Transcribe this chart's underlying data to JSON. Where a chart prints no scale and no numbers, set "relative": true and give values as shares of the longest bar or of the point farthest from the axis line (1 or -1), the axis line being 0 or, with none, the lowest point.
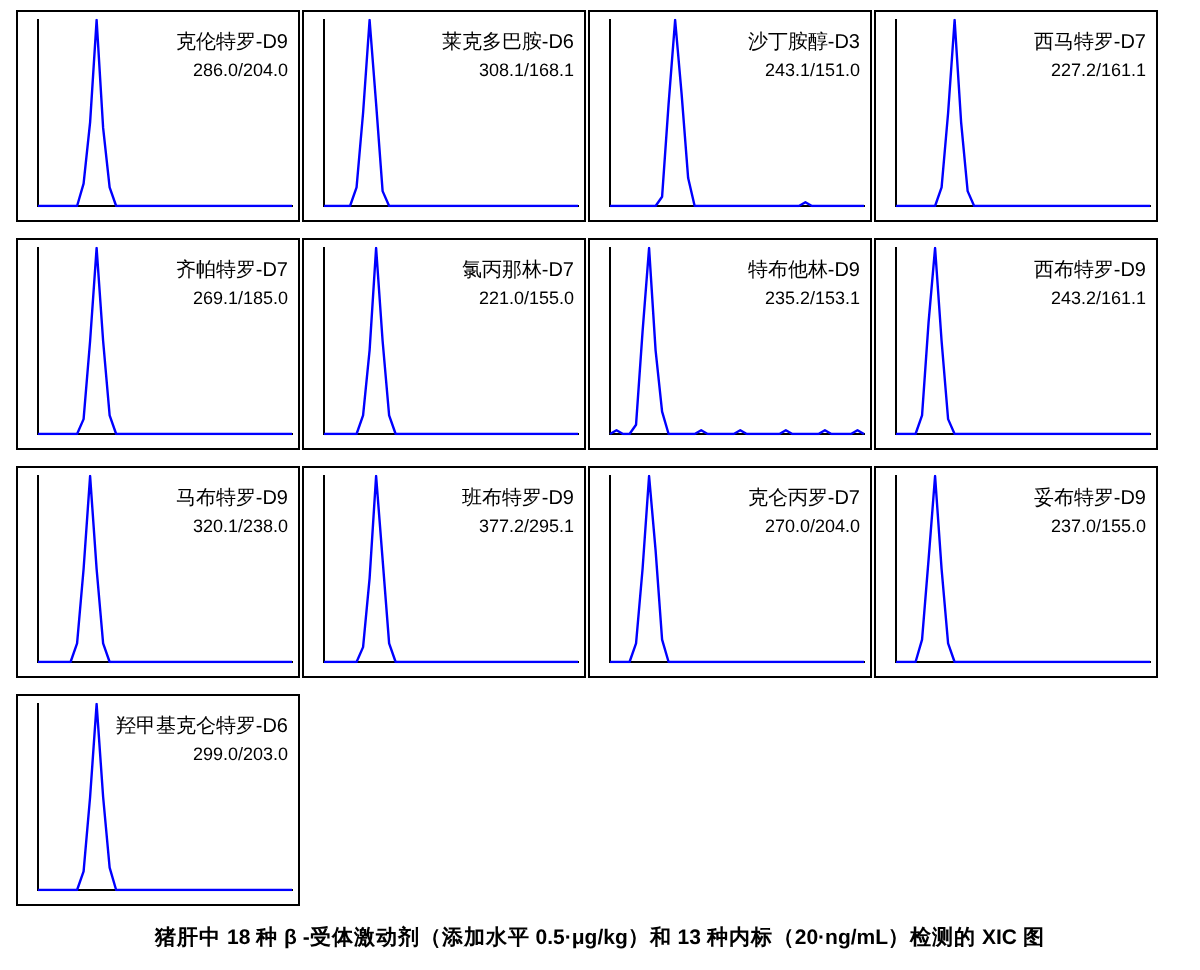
{
  "chart_data": [
    {
      "type": "line",
      "title": "克伦特罗-D9",
      "subtitle": "286.0/204.0",
      "relative": true,
      "marker": "none",
      "color": "#0000ff",
      "categories": [
        null,
        null,
        null,
        null,
        null,
        null,
        null,
        null,
        null,
        null,
        null,
        null,
        null,
        null,
        null,
        null,
        null,
        null,
        null,
        null,
        null,
        null,
        null,
        null,
        null,
        null,
        null,
        null,
        null,
        null,
        null,
        null,
        null,
        null,
        null,
        null,
        null,
        null,
        null,
        null
      ],
      "values": [
        0,
        0,
        0,
        0,
        0,
        0,
        0,
        0.12,
        0.45,
        1,
        0.42,
        0.1,
        0,
        0,
        0,
        0,
        0,
        0,
        0,
        0,
        0,
        0,
        0,
        0,
        0,
        0,
        0,
        0,
        0,
        0,
        0,
        0,
        0,
        0,
        0,
        0,
        0,
        0,
        0,
        0
      ]
    },
    {
      "type": "line",
      "title": "莱克多巴胺-D6",
      "subtitle": "308.1/168.1",
      "relative": true,
      "marker": "none",
      "color": "#0000ff",
      "categories": [
        null,
        null,
        null,
        null,
        null,
        null,
        null,
        null,
        null,
        null,
        null,
        null,
        null,
        null,
        null,
        null,
        null,
        null,
        null,
        null,
        null,
        null,
        null,
        null,
        null,
        null,
        null,
        null,
        null,
        null,
        null,
        null,
        null,
        null,
        null,
        null,
        null,
        null,
        null,
        null
      ],
      "values": [
        0,
        0,
        0,
        0,
        0,
        0.1,
        0.5,
        1,
        0.55,
        0.08,
        0,
        0,
        0,
        0,
        0,
        0,
        0,
        0,
        0,
        0,
        0,
        0,
        0,
        0,
        0,
        0,
        0,
        0,
        0,
        0,
        0,
        0,
        0,
        0,
        0,
        0,
        0,
        0,
        0,
        0
      ]
    },
    {
      "type": "line",
      "title": "沙丁胺醇-D3",
      "subtitle": "243.1/151.0",
      "relative": true,
      "marker": "none",
      "color": "#0000ff",
      "categories": [
        null,
        null,
        null,
        null,
        null,
        null,
        null,
        null,
        null,
        null,
        null,
        null,
        null,
        null,
        null,
        null,
        null,
        null,
        null,
        null,
        null,
        null,
        null,
        null,
        null,
        null,
        null,
        null,
        null,
        null,
        null,
        null,
        null,
        null,
        null,
        null,
        null,
        null,
        null,
        null
      ],
      "values": [
        0,
        0,
        0,
        0,
        0,
        0,
        0,
        0,
        0.05,
        0.55,
        1,
        0.6,
        0.15,
        0,
        0,
        0,
        0,
        0,
        0,
        0,
        0,
        0,
        0,
        0,
        0,
        0,
        0,
        0,
        0,
        0,
        0.02,
        0,
        0,
        0,
        0,
        0,
        0,
        0,
        0,
        0
      ]
    },
    {
      "type": "line",
      "title": "西马特罗-D7",
      "subtitle": "227.2/161.1",
      "relative": true,
      "marker": "none",
      "color": "#0000ff",
      "categories": [
        null,
        null,
        null,
        null,
        null,
        null,
        null,
        null,
        null,
        null,
        null,
        null,
        null,
        null,
        null,
        null,
        null,
        null,
        null,
        null,
        null,
        null,
        null,
        null,
        null,
        null,
        null,
        null,
        null,
        null,
        null,
        null,
        null,
        null,
        null,
        null,
        null,
        null,
        null,
        null
      ],
      "values": [
        0,
        0,
        0,
        0,
        0,
        0,
        0,
        0.1,
        0.5,
        1,
        0.45,
        0.08,
        0,
        0,
        0,
        0,
        0,
        0,
        0,
        0,
        0,
        0,
        0,
        0,
        0,
        0,
        0,
        0,
        0,
        0,
        0,
        0,
        0,
        0,
        0,
        0,
        0,
        0,
        0,
        0
      ]
    },
    {
      "type": "line",
      "title": "齐帕特罗-D7",
      "subtitle": "269.1/185.0",
      "relative": true,
      "marker": "none",
      "color": "#0000ff",
      "categories": [
        null,
        null,
        null,
        null,
        null,
        null,
        null,
        null,
        null,
        null,
        null,
        null,
        null,
        null,
        null,
        null,
        null,
        null,
        null,
        null,
        null,
        null,
        null,
        null,
        null,
        null,
        null,
        null,
        null,
        null,
        null,
        null,
        null,
        null,
        null,
        null,
        null,
        null,
        null,
        null
      ],
      "values": [
        0,
        0,
        0,
        0,
        0,
        0,
        0,
        0.08,
        0.5,
        1,
        0.5,
        0.1,
        0,
        0,
        0,
        0,
        0,
        0,
        0,
        0,
        0,
        0,
        0,
        0,
        0,
        0,
        0,
        0,
        0,
        0,
        0,
        0,
        0,
        0,
        0,
        0,
        0,
        0,
        0,
        0
      ]
    },
    {
      "type": "line",
      "title": "氯丙那林-D7",
      "subtitle": "221.0/155.0",
      "relative": true,
      "marker": "none",
      "color": "#0000ff",
      "categories": [
        null,
        null,
        null,
        null,
        null,
        null,
        null,
        null,
        null,
        null,
        null,
        null,
        null,
        null,
        null,
        null,
        null,
        null,
        null,
        null,
        null,
        null,
        null,
        null,
        null,
        null,
        null,
        null,
        null,
        null,
        null,
        null,
        null,
        null,
        null,
        null,
        null,
        null,
        null,
        null
      ],
      "values": [
        0,
        0,
        0,
        0,
        0,
        0,
        0.1,
        0.45,
        1,
        0.5,
        0.1,
        0,
        0,
        0,
        0,
        0,
        0,
        0,
        0,
        0,
        0,
        0,
        0,
        0,
        0,
        0,
        0,
        0,
        0,
        0,
        0,
        0,
        0,
        0,
        0,
        0,
        0,
        0,
        0,
        0
      ]
    },
    {
      "type": "line",
      "title": "特布他林-D9",
      "subtitle": "235.2/153.1",
      "relative": true,
      "marker": "none",
      "color": "#0000ff",
      "categories": [
        null,
        null,
        null,
        null,
        null,
        null,
        null,
        null,
        null,
        null,
        null,
        null,
        null,
        null,
        null,
        null,
        null,
        null,
        null,
        null,
        null,
        null,
        null,
        null,
        null,
        null,
        null,
        null,
        null,
        null,
        null,
        null,
        null,
        null,
        null,
        null,
        null,
        null,
        null,
        null
      ],
      "values": [
        0,
        0.02,
        0,
        0,
        0.05,
        0.55,
        1,
        0.45,
        0.12,
        0,
        0,
        0,
        0,
        0,
        0.02,
        0,
        0,
        0,
        0,
        0,
        0.02,
        0,
        0,
        0,
        0,
        0,
        0,
        0.02,
        0,
        0,
        0,
        0,
        0,
        0.02,
        0,
        0,
        0,
        0,
        0.02,
        0
      ]
    },
    {
      "type": "line",
      "title": "西布特罗-D9",
      "subtitle": "243.2/161.1",
      "relative": true,
      "marker": "none",
      "color": "#0000ff",
      "categories": [
        null,
        null,
        null,
        null,
        null,
        null,
        null,
        null,
        null,
        null,
        null,
        null,
        null,
        null,
        null,
        null,
        null,
        null,
        null,
        null,
        null,
        null,
        null,
        null,
        null,
        null,
        null,
        null,
        null,
        null,
        null,
        null,
        null,
        null,
        null,
        null,
        null,
        null,
        null,
        null
      ],
      "values": [
        0,
        0,
        0,
        0,
        0.1,
        0.6,
        1,
        0.5,
        0.08,
        0,
        0,
        0,
        0,
        0,
        0,
        0,
        0,
        0,
        0,
        0,
        0,
        0,
        0,
        0,
        0,
        0,
        0,
        0,
        0,
        0,
        0,
        0,
        0,
        0,
        0,
        0,
        0,
        0,
        0,
        0
      ]
    },
    {
      "type": "line",
      "title": "马布特罗-D9",
      "subtitle": "320.1/238.0",
      "relative": true,
      "marker": "none",
      "color": "#0000ff",
      "categories": [
        null,
        null,
        null,
        null,
        null,
        null,
        null,
        null,
        null,
        null,
        null,
        null,
        null,
        null,
        null,
        null,
        null,
        null,
        null,
        null,
        null,
        null,
        null,
        null,
        null,
        null,
        null,
        null,
        null,
        null,
        null,
        null,
        null,
        null,
        null,
        null,
        null,
        null,
        null,
        null
      ],
      "values": [
        0,
        0,
        0,
        0,
        0,
        0,
        0.1,
        0.5,
        1,
        0.5,
        0.1,
        0,
        0,
        0,
        0,
        0,
        0,
        0,
        0,
        0,
        0,
        0,
        0,
        0,
        0,
        0,
        0,
        0,
        0,
        0,
        0,
        0,
        0,
        0,
        0,
        0,
        0,
        0,
        0,
        0
      ]
    },
    {
      "type": "line",
      "title": "班布特罗-D9",
      "subtitle": "377.2/295.1",
      "relative": true,
      "marker": "none",
      "color": "#0000ff",
      "categories": [
        null,
        null,
        null,
        null,
        null,
        null,
        null,
        null,
        null,
        null,
        null,
        null,
        null,
        null,
        null,
        null,
        null,
        null,
        null,
        null,
        null,
        null,
        null,
        null,
        null,
        null,
        null,
        null,
        null,
        null,
        null,
        null,
        null,
        null,
        null,
        null,
        null,
        null,
        null,
        null
      ],
      "values": [
        0,
        0,
        0,
        0,
        0,
        0,
        0.08,
        0.45,
        1,
        0.55,
        0.1,
        0,
        0,
        0,
        0,
        0,
        0,
        0,
        0,
        0,
        0,
        0,
        0,
        0,
        0,
        0,
        0,
        0,
        0,
        0,
        0,
        0,
        0,
        0,
        0,
        0,
        0,
        0,
        0,
        0
      ]
    },
    {
      "type": "line",
      "title": "克仑丙罗-D7",
      "subtitle": "270.0/204.0",
      "relative": true,
      "marker": "none",
      "color": "#0000ff",
      "categories": [
        null,
        null,
        null,
        null,
        null,
        null,
        null,
        null,
        null,
        null,
        null,
        null,
        null,
        null,
        null,
        null,
        null,
        null,
        null,
        null,
        null,
        null,
        null,
        null,
        null,
        null,
        null,
        null,
        null,
        null,
        null,
        null,
        null,
        null,
        null,
        null,
        null,
        null,
        null,
        null
      ],
      "values": [
        0,
        0,
        0,
        0,
        0.1,
        0.5,
        1,
        0.6,
        0.12,
        0,
        0,
        0,
        0,
        0,
        0,
        0,
        0,
        0,
        0,
        0,
        0,
        0,
        0,
        0,
        0,
        0,
        0,
        0,
        0,
        0,
        0,
        0,
        0,
        0,
        0,
        0,
        0,
        0,
        0,
        0
      ]
    },
    {
      "type": "line",
      "title": "妥布特罗-D9",
      "subtitle": "237.0/155.0",
      "relative": true,
      "marker": "none",
      "color": "#0000ff",
      "categories": [
        null,
        null,
        null,
        null,
        null,
        null,
        null,
        null,
        null,
        null,
        null,
        null,
        null,
        null,
        null,
        null,
        null,
        null,
        null,
        null,
        null,
        null,
        null,
        null,
        null,
        null,
        null,
        null,
        null,
        null,
        null,
        null,
        null,
        null,
        null,
        null,
        null,
        null,
        null,
        null
      ],
      "values": [
        0,
        0,
        0,
        0,
        0.12,
        0.55,
        1,
        0.5,
        0.1,
        0,
        0,
        0,
        0,
        0,
        0,
        0,
        0,
        0,
        0,
        0,
        0,
        0,
        0,
        0,
        0,
        0,
        0,
        0,
        0,
        0,
        0,
        0,
        0,
        0,
        0,
        0,
        0,
        0,
        0,
        0
      ]
    },
    {
      "type": "line",
      "title": "羟甲基克仑特罗-D6",
      "subtitle": "299.0/203.0",
      "relative": true,
      "marker": "none",
      "color": "#0000ff",
      "categories": [
        null,
        null,
        null,
        null,
        null,
        null,
        null,
        null,
        null,
        null,
        null,
        null,
        null,
        null,
        null,
        null,
        null,
        null,
        null,
        null,
        null,
        null,
        null,
        null,
        null,
        null,
        null,
        null,
        null,
        null,
        null,
        null,
        null,
        null,
        null,
        null,
        null,
        null,
        null,
        null
      ],
      "values": [
        0,
        0,
        0,
        0,
        0,
        0,
        0,
        0.1,
        0.5,
        1,
        0.5,
        0.12,
        0,
        0,
        0,
        0,
        0,
        0,
        0,
        0,
        0,
        0,
        0,
        0,
        0,
        0,
        0,
        0,
        0,
        0,
        0,
        0,
        0,
        0,
        0,
        0,
        0,
        0,
        0,
        0
      ],
      "annotations": [
        "猪肝中 18 种 β -受体激动剂（添加水平 0.5·μg/kg）和 13 种内标（20·ng/mL）检测的 XIC 图"
      ]
    }
  ]
}
